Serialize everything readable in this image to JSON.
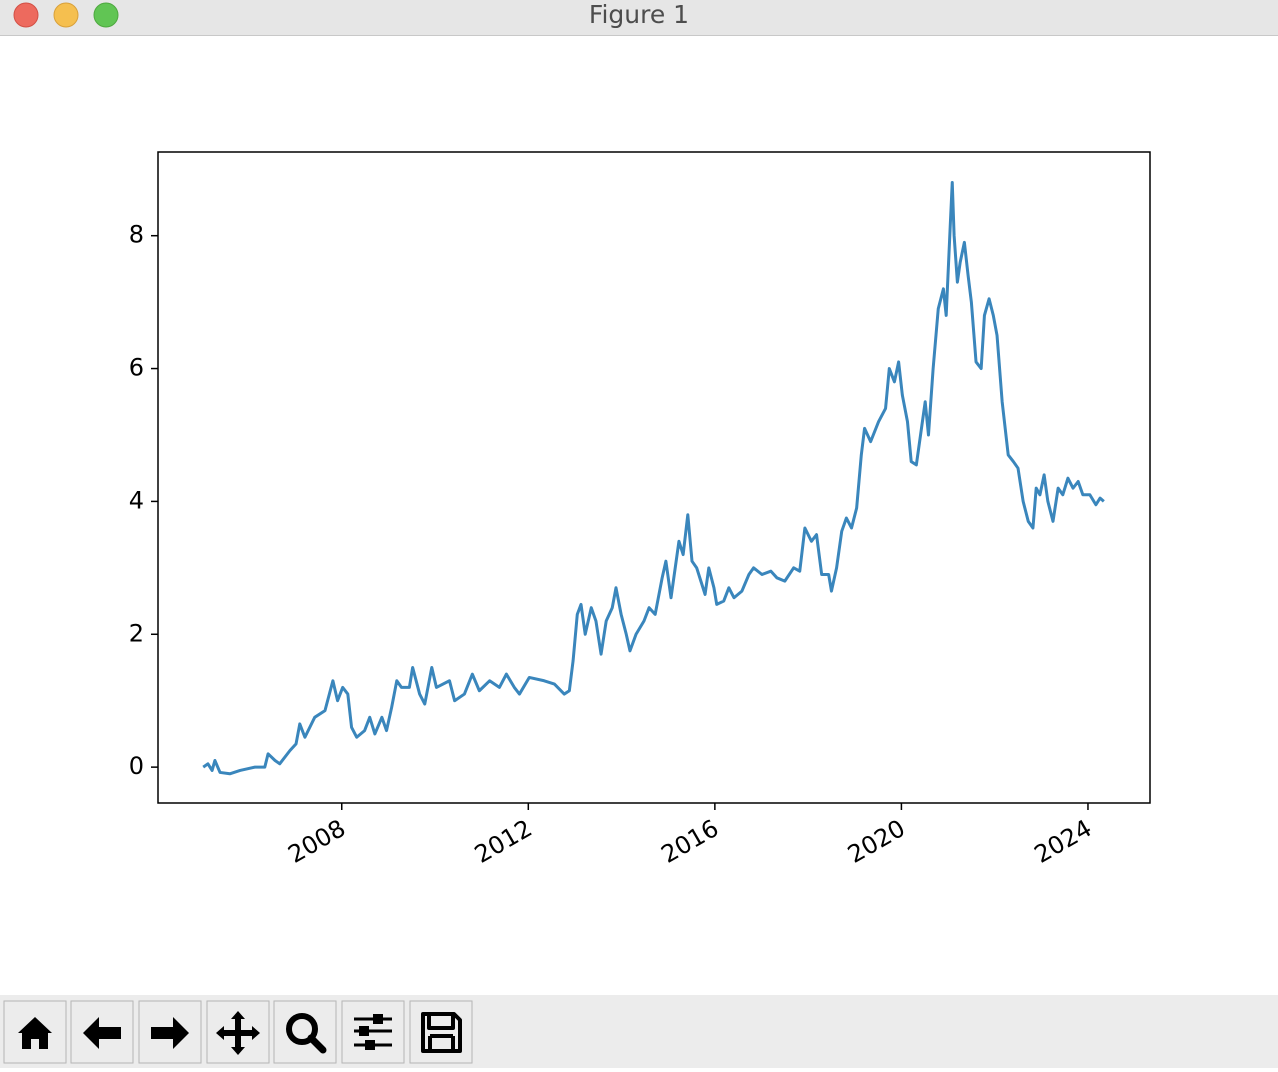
{
  "window": {
    "title": "Figure 1"
  },
  "chart_data": {
    "type": "line",
    "color": "#3a86bc",
    "x": [
      2005.03,
      2005.13,
      2005.22,
      2005.28,
      2005.39,
      2005.6,
      2005.82,
      2006.14,
      2006.35,
      2006.42,
      2006.57,
      2006.67,
      2006.89,
      2007.02,
      2007.1,
      2007.21,
      2007.42,
      2007.64,
      2007.81,
      2007.91,
      2008.02,
      2008.13,
      2008.21,
      2008.32,
      2008.49,
      2008.6,
      2008.71,
      2008.86,
      2008.96,
      2009.07,
      2009.18,
      2009.28,
      2009.45,
      2009.52,
      2009.67,
      2009.78,
      2009.93,
      2010.03,
      2010.31,
      2010.42,
      2010.63,
      2010.8,
      2010.95,
      2011.17,
      2011.38,
      2011.53,
      2011.7,
      2011.81,
      2012.02,
      2012.34,
      2012.56,
      2012.77,
      2012.88,
      2012.96,
      2013.05,
      2013.13,
      2013.22,
      2013.35,
      2013.45,
      2013.56,
      2013.67,
      2013.8,
      2013.88,
      2013.99,
      2014.1,
      2014.18,
      2014.31,
      2014.48,
      2014.59,
      2014.72,
      2014.87,
      2014.95,
      2015.06,
      2015.23,
      2015.32,
      2015.42,
      2015.51,
      2015.61,
      2015.7,
      2015.79,
      2015.87,
      2015.98,
      2016.04,
      2016.19,
      2016.3,
      2016.41,
      2016.58,
      2016.73,
      2016.83,
      2017.01,
      2017.2,
      2017.33,
      2017.5,
      2017.69,
      2017.82,
      2017.93,
      2018.07,
      2018.18,
      2018.29,
      2018.44,
      2018.5,
      2018.61,
      2018.72,
      2018.82,
      2018.93,
      2019.04,
      2019.14,
      2019.21,
      2019.34,
      2019.51,
      2019.66,
      2019.74,
      2019.85,
      2019.94,
      2020.02,
      2020.13,
      2020.21,
      2020.32,
      2020.41,
      2020.51,
      2020.58,
      2020.68,
      2020.79,
      2020.9,
      2020.96,
      2021.05,
      2021.09,
      2021.13,
      2021.2,
      2021.26,
      2021.35,
      2021.43,
      2021.5,
      2021.6,
      2021.71,
      2021.78,
      2021.88,
      2021.97,
      2022.05,
      2022.16,
      2022.29,
      2022.4,
      2022.5,
      2022.61,
      2022.72,
      2022.82,
      2022.89,
      2022.97,
      2023.06,
      2023.14,
      2023.25,
      2023.36,
      2023.46,
      2023.57,
      2023.68,
      2023.79,
      2023.89,
      2024.04,
      2024.17,
      2024.26,
      2024.34
    ],
    "values": [
      0.0,
      0.05,
      -0.05,
      0.1,
      -0.08,
      -0.1,
      -0.05,
      0.0,
      0.0,
      0.2,
      0.1,
      0.05,
      0.25,
      0.35,
      0.65,
      0.45,
      0.75,
      0.85,
      1.3,
      1.0,
      1.2,
      1.1,
      0.6,
      0.45,
      0.55,
      0.75,
      0.5,
      0.75,
      0.55,
      0.9,
      1.3,
      1.2,
      1.2,
      1.5,
      1.1,
      0.95,
      1.5,
      1.2,
      1.3,
      1.0,
      1.1,
      1.4,
      1.15,
      1.3,
      1.2,
      1.4,
      1.2,
      1.1,
      1.35,
      1.3,
      1.25,
      1.1,
      1.15,
      1.6,
      2.3,
      2.45,
      2.0,
      2.4,
      2.2,
      1.7,
      2.2,
      2.4,
      2.7,
      2.3,
      2.0,
      1.75,
      2.0,
      2.2,
      2.4,
      2.3,
      2.85,
      3.1,
      2.55,
      3.4,
      3.2,
      3.8,
      3.1,
      3.0,
      2.8,
      2.6,
      3.0,
      2.7,
      2.45,
      2.5,
      2.7,
      2.55,
      2.65,
      2.9,
      3.0,
      2.9,
      2.95,
      2.85,
      2.8,
      3.0,
      2.95,
      3.6,
      3.4,
      3.5,
      2.9,
      2.9,
      2.65,
      3.0,
      3.55,
      3.75,
      3.6,
      3.9,
      4.7,
      5.1,
      4.9,
      5.2,
      5.4,
      6.0,
      5.8,
      6.1,
      5.6,
      5.2,
      4.6,
      4.55,
      5.0,
      5.5,
      5.0,
      6.0,
      6.9,
      7.2,
      6.8,
      8.2,
      8.8,
      8.0,
      7.3,
      7.6,
      7.9,
      7.4,
      7.0,
      6.1,
      6.0,
      6.8,
      7.05,
      6.8,
      6.5,
      5.5,
      4.7,
      4.6,
      4.5,
      4.0,
      3.7,
      3.6,
      4.2,
      4.1,
      4.4,
      4.0,
      3.7,
      4.2,
      4.1,
      4.35,
      4.2,
      4.3,
      4.1,
      4.1,
      3.95,
      4.05,
      4.0
    ],
    "xlim": [
      2004.06,
      2025.33
    ],
    "xticks": [
      2008,
      2012,
      2016,
      2020,
      2024
    ],
    "ylim": [
      -0.54,
      9.26
    ],
    "yticks": [
      0,
      2,
      4,
      6,
      8
    ]
  }
}
